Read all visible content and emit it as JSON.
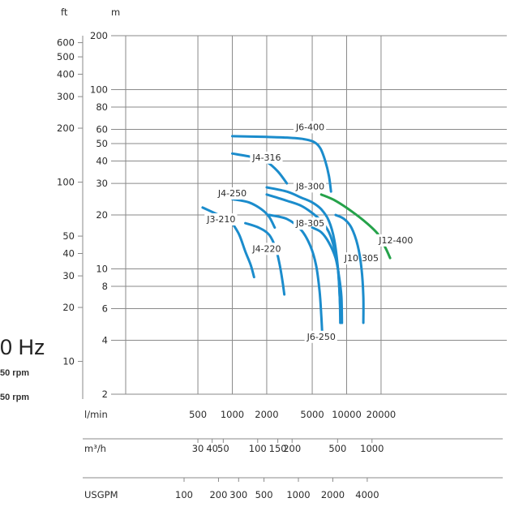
{
  "side_text": {
    "frequency": "0 Hz",
    "rpm_line_1": "50 rpm",
    "rpm_line_2": "50 rpm"
  },
  "chart_data": {
    "type": "line",
    "x_scale": "log",
    "y_scale": "log",
    "xlabel": "l/min",
    "xlim": [
      300,
      35000
    ],
    "x_ticks": [
      "500",
      "1000",
      "2000",
      "5000",
      "10000",
      "20000"
    ],
    "x_tick_values": [
      500,
      1000,
      2000,
      5000,
      10000,
      20000
    ],
    "secondary_x_axes": [
      {
        "label": "m³/h",
        "ticks": [
          "30",
          "40",
          "50",
          "100",
          "150",
          "200",
          "500",
          "1000"
        ],
        "tick_values": [
          30,
          40,
          50,
          100,
          150,
          200,
          500,
          1000
        ]
      },
      {
        "label": "USGPM",
        "ticks": [
          "100",
          "200",
          "300",
          "500",
          "1000",
          "2000",
          "4000"
        ],
        "tick_values": [
          100,
          200,
          300,
          500,
          1000,
          2000,
          4000
        ]
      }
    ],
    "ylabel": "m",
    "ylim": [
      2,
      200
    ],
    "y_ticks": [
      "2",
      "4",
      "6",
      "8",
      "10",
      "20",
      "30",
      "40",
      "50",
      "60",
      "80",
      "100",
      "200"
    ],
    "y_tick_values": [
      2,
      4,
      6,
      8,
      10,
      20,
      30,
      40,
      50,
      60,
      80,
      100,
      200
    ],
    "secondary_y_axis": {
      "label": "ft",
      "ticks": [
        "10",
        "20",
        "30",
        "40",
        "50",
        "100",
        "200",
        "300",
        "400",
        "500",
        "600"
      ],
      "tick_values": [
        10,
        20,
        30,
        40,
        50,
        100,
        200,
        300,
        400,
        500,
        600
      ]
    },
    "grid": true,
    "colors": {
      "blue": "#1b8ccc",
      "green": "#25a24a",
      "grid": "#8a8a8a",
      "text": "#2b2b2b"
    },
    "series": [
      {
        "name": "J3-210",
        "color": "#1b8ccc",
        "label_at": [
          800,
          19
        ],
        "leader_to": [
          650,
          20
        ],
        "segments": [
          [
            [
              550,
              22
            ],
            [
              760,
              20
            ]
          ],
          [
            [
              1000,
              18
            ],
            [
              1150,
              15.5
            ],
            [
              1300,
              12.5
            ],
            [
              1450,
              10.5
            ],
            [
              1550,
              9
            ]
          ]
        ]
      },
      {
        "name": "J4-220",
        "color": "#1b8ccc",
        "label_at": [
          2000,
          13
        ],
        "leader_to": [
          2000,
          14
        ],
        "segments": [
          [
            [
              1300,
              18
            ],
            [
              1700,
              17
            ],
            [
              2100,
              15.5
            ],
            [
              2400,
              13
            ],
            [
              2600,
              10.5
            ],
            [
              2750,
              8.5
            ],
            [
              2850,
              7.2
            ]
          ]
        ]
      },
      {
        "name": "J4-250",
        "color": "#1b8ccc",
        "label_at": [
          1000,
          26.5
        ],
        "leader_to": null,
        "segments": [
          [
            [
              1000,
              24.5
            ],
            [
              1400,
              23.5
            ],
            [
              1800,
              21.5
            ],
            [
              2100,
              19.5
            ],
            [
              2350,
              17
            ]
          ]
        ]
      },
      {
        "name": "J4-316",
        "color": "#1b8ccc",
        "label_at": [
          2000,
          42
        ],
        "leader_to": null,
        "segments": [
          [
            [
              1000,
              44
            ],
            [
              1500,
              42
            ],
            [
              2000,
              39.5
            ],
            [
              2500,
              35
            ],
            [
              3000,
              30
            ]
          ]
        ]
      },
      {
        "name": "J6-400",
        "color": "#1b8ccc",
        "label_at": [
          4800,
          62
        ],
        "leader_to": [
          5600,
          62
        ],
        "segments": [
          [
            [
              1000,
              55
            ],
            [
              2000,
              54.5
            ],
            [
              3000,
              54
            ],
            [
              4200,
              53
            ],
            [
              5200,
              51
            ],
            [
              5900,
              47
            ],
            [
              6500,
              40
            ],
            [
              7000,
              33
            ],
            [
              7300,
              27
            ]
          ]
        ]
      },
      {
        "name": "J6-250",
        "color": "#1b8ccc",
        "label_at": [
          6000,
          4.2
        ],
        "leader_to": null,
        "segments": [
          [
            [
              2100,
              20
            ],
            [
              3000,
              19
            ],
            [
              4000,
              16.5
            ],
            [
              4800,
              13.5
            ],
            [
              5400,
              10.5
            ],
            [
              5800,
              7.5
            ],
            [
              6000,
              5.5
            ],
            [
              6100,
              4.5
            ]
          ]
        ]
      },
      {
        "name": "J8-300",
        "color": "#1b8ccc",
        "label_at": [
          4800,
          29
        ],
        "leader_to": null,
        "segments": [
          [
            [
              2000,
              28.5
            ],
            [
              3000,
              27
            ],
            [
              4000,
              25
            ],
            [
              5000,
              23.5
            ],
            [
              6000,
              21.5
            ],
            [
              7000,
              18.5
            ],
            [
              7800,
              14.5
            ],
            [
              8400,
              10
            ],
            [
              8700,
              7
            ],
            [
              8900,
              5
            ]
          ]
        ]
      },
      {
        "name": "J8-305",
        "color": "#1b8ccc",
        "label_at": [
          4800,
          18
        ],
        "leader_to": null,
        "segments": [
          [
            [
              2000,
              26
            ],
            [
              3000,
              24
            ],
            [
              4000,
              22.5
            ],
            [
              5000,
              20.5
            ],
            [
              6000,
              18.5
            ],
            [
              7000,
              16
            ],
            [
              7800,
              13
            ],
            [
              8400,
              10
            ],
            [
              8700,
              7
            ],
            [
              8800,
              5
            ]
          ]
        ]
      },
      {
        "name": "J10-305",
        "color": "#1b8ccc",
        "label_at": [
          13500,
          11.5
        ],
        "leader_to": null,
        "segments": [
          [
            [
              5000,
              17
            ],
            [
              6000,
              16
            ],
            [
              7000,
              14
            ],
            [
              8000,
              11.5
            ],
            [
              8600,
              9
            ],
            [
              9000,
              7
            ],
            [
              9100,
              5
            ]
          ]
        ]
      },
      {
        "name": "J10-305",
        "color": "#1b8ccc",
        "label_at": null,
        "leader_to": null,
        "segments": [
          [
            [
              8000,
              20
            ],
            [
              9500,
              19
            ],
            [
              11000,
              17
            ],
            [
              12500,
              13.5
            ],
            [
              13500,
              10
            ],
            [
              14000,
              7
            ],
            [
              14000,
              5
            ]
          ]
        ]
      },
      {
        "name": "J12-400",
        "color": "#25a24a",
        "label_at": [
          27000,
          14.5
        ],
        "leader_to": [
          26000,
          14.5
        ],
        "segments": [
          [
            [
              6000,
              26
            ],
            [
              8000,
              24
            ],
            [
              11000,
              21
            ],
            [
              15000,
              18
            ],
            [
              19000,
              15.5
            ],
            [
              22000,
              13
            ],
            [
              24000,
              11.5
            ]
          ]
        ]
      }
    ]
  }
}
